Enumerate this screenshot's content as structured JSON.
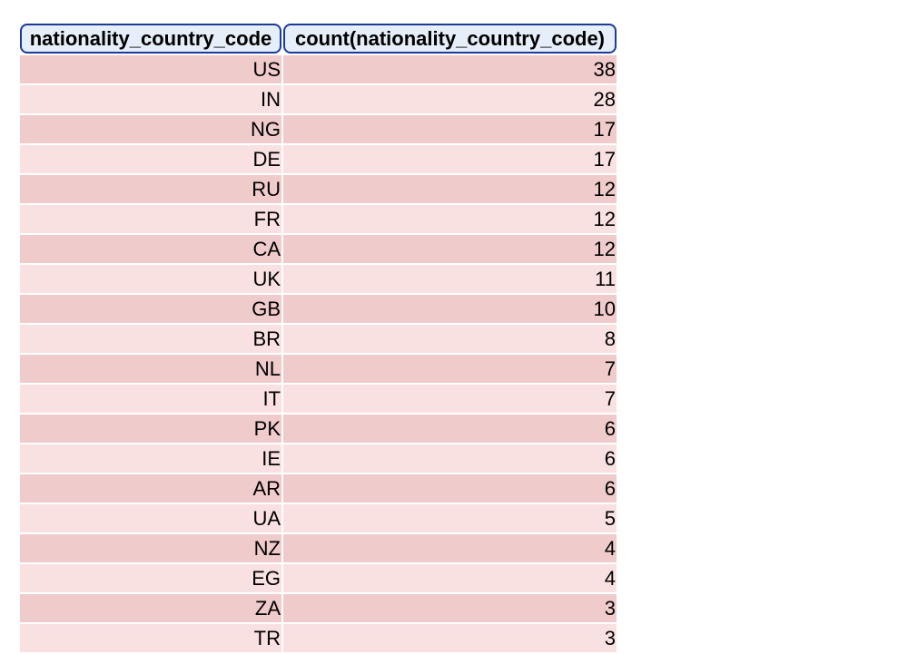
{
  "table": {
    "headers": [
      "nationality_country_code",
      "count(nationality_country_code)"
    ],
    "rows": [
      [
        "US",
        "38"
      ],
      [
        "IN",
        "28"
      ],
      [
        "NG",
        "17"
      ],
      [
        "DE",
        "17"
      ],
      [
        "RU",
        "12"
      ],
      [
        "FR",
        "12"
      ],
      [
        "CA",
        "12"
      ],
      [
        "UK",
        "11"
      ],
      [
        "GB",
        "10"
      ],
      [
        "BR",
        "8"
      ],
      [
        "NL",
        "7"
      ],
      [
        "IT",
        "7"
      ],
      [
        "PK",
        "6"
      ],
      [
        "IE",
        "6"
      ],
      [
        "AR",
        "6"
      ],
      [
        "UA",
        "5"
      ],
      [
        "NZ",
        "4"
      ],
      [
        "EG",
        "4"
      ],
      [
        "ZA",
        "3"
      ],
      [
        "TR",
        "3"
      ]
    ]
  },
  "colors": {
    "row_odd": "#f0cbcc",
    "row_even": "#f9e1e2",
    "header_bg": "#e6eef9",
    "header_border": "#1a3a9c"
  }
}
